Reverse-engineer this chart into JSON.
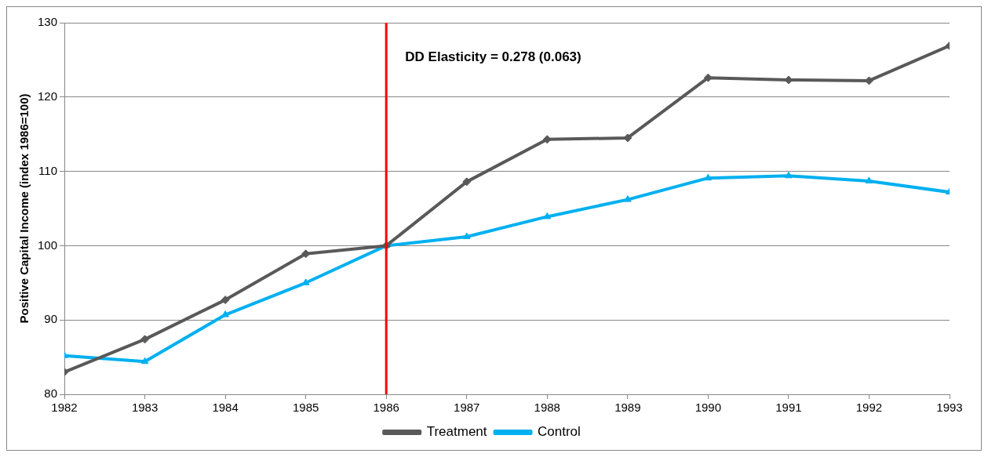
{
  "chart_data": {
    "type": "line",
    "ylabel": "Positive Capital Income (index 1986=100)",
    "x": [
      1982,
      1983,
      1984,
      1985,
      1986,
      1987,
      1988,
      1989,
      1990,
      1991,
      1992,
      1993
    ],
    "series": [
      {
        "name": "Treatment",
        "color": "#595959",
        "marker": "diamond",
        "values": [
          83.0,
          87.4,
          92.7,
          98.9,
          100,
          108.6,
          114.3,
          114.5,
          122.6,
          122.3,
          122.2,
          126.9
        ]
      },
      {
        "name": "Control",
        "color": "#00b0f0",
        "marker": "triangle",
        "values": [
          85.2,
          84.4,
          90.7,
          95.0,
          100,
          101.2,
          103.9,
          106.2,
          109.1,
          109.4,
          108.7,
          107.2
        ]
      }
    ],
    "xlim": [
      1982,
      1993
    ],
    "xticks": [
      1982,
      1983,
      1984,
      1985,
      1986,
      1987,
      1988,
      1989,
      1990,
      1991,
      1992,
      1993
    ],
    "ylim": [
      80,
      130
    ],
    "yticks": [
      80,
      90,
      100,
      110,
      120,
      130
    ],
    "ref_lines": [
      {
        "axis": "x",
        "value": 1986,
        "color": "#ff0000"
      }
    ],
    "annotations": [
      "DD Elasticity = 0.278 (0.063)"
    ],
    "grid": "y",
    "legend": "bottom",
    "line_style": "solid"
  }
}
